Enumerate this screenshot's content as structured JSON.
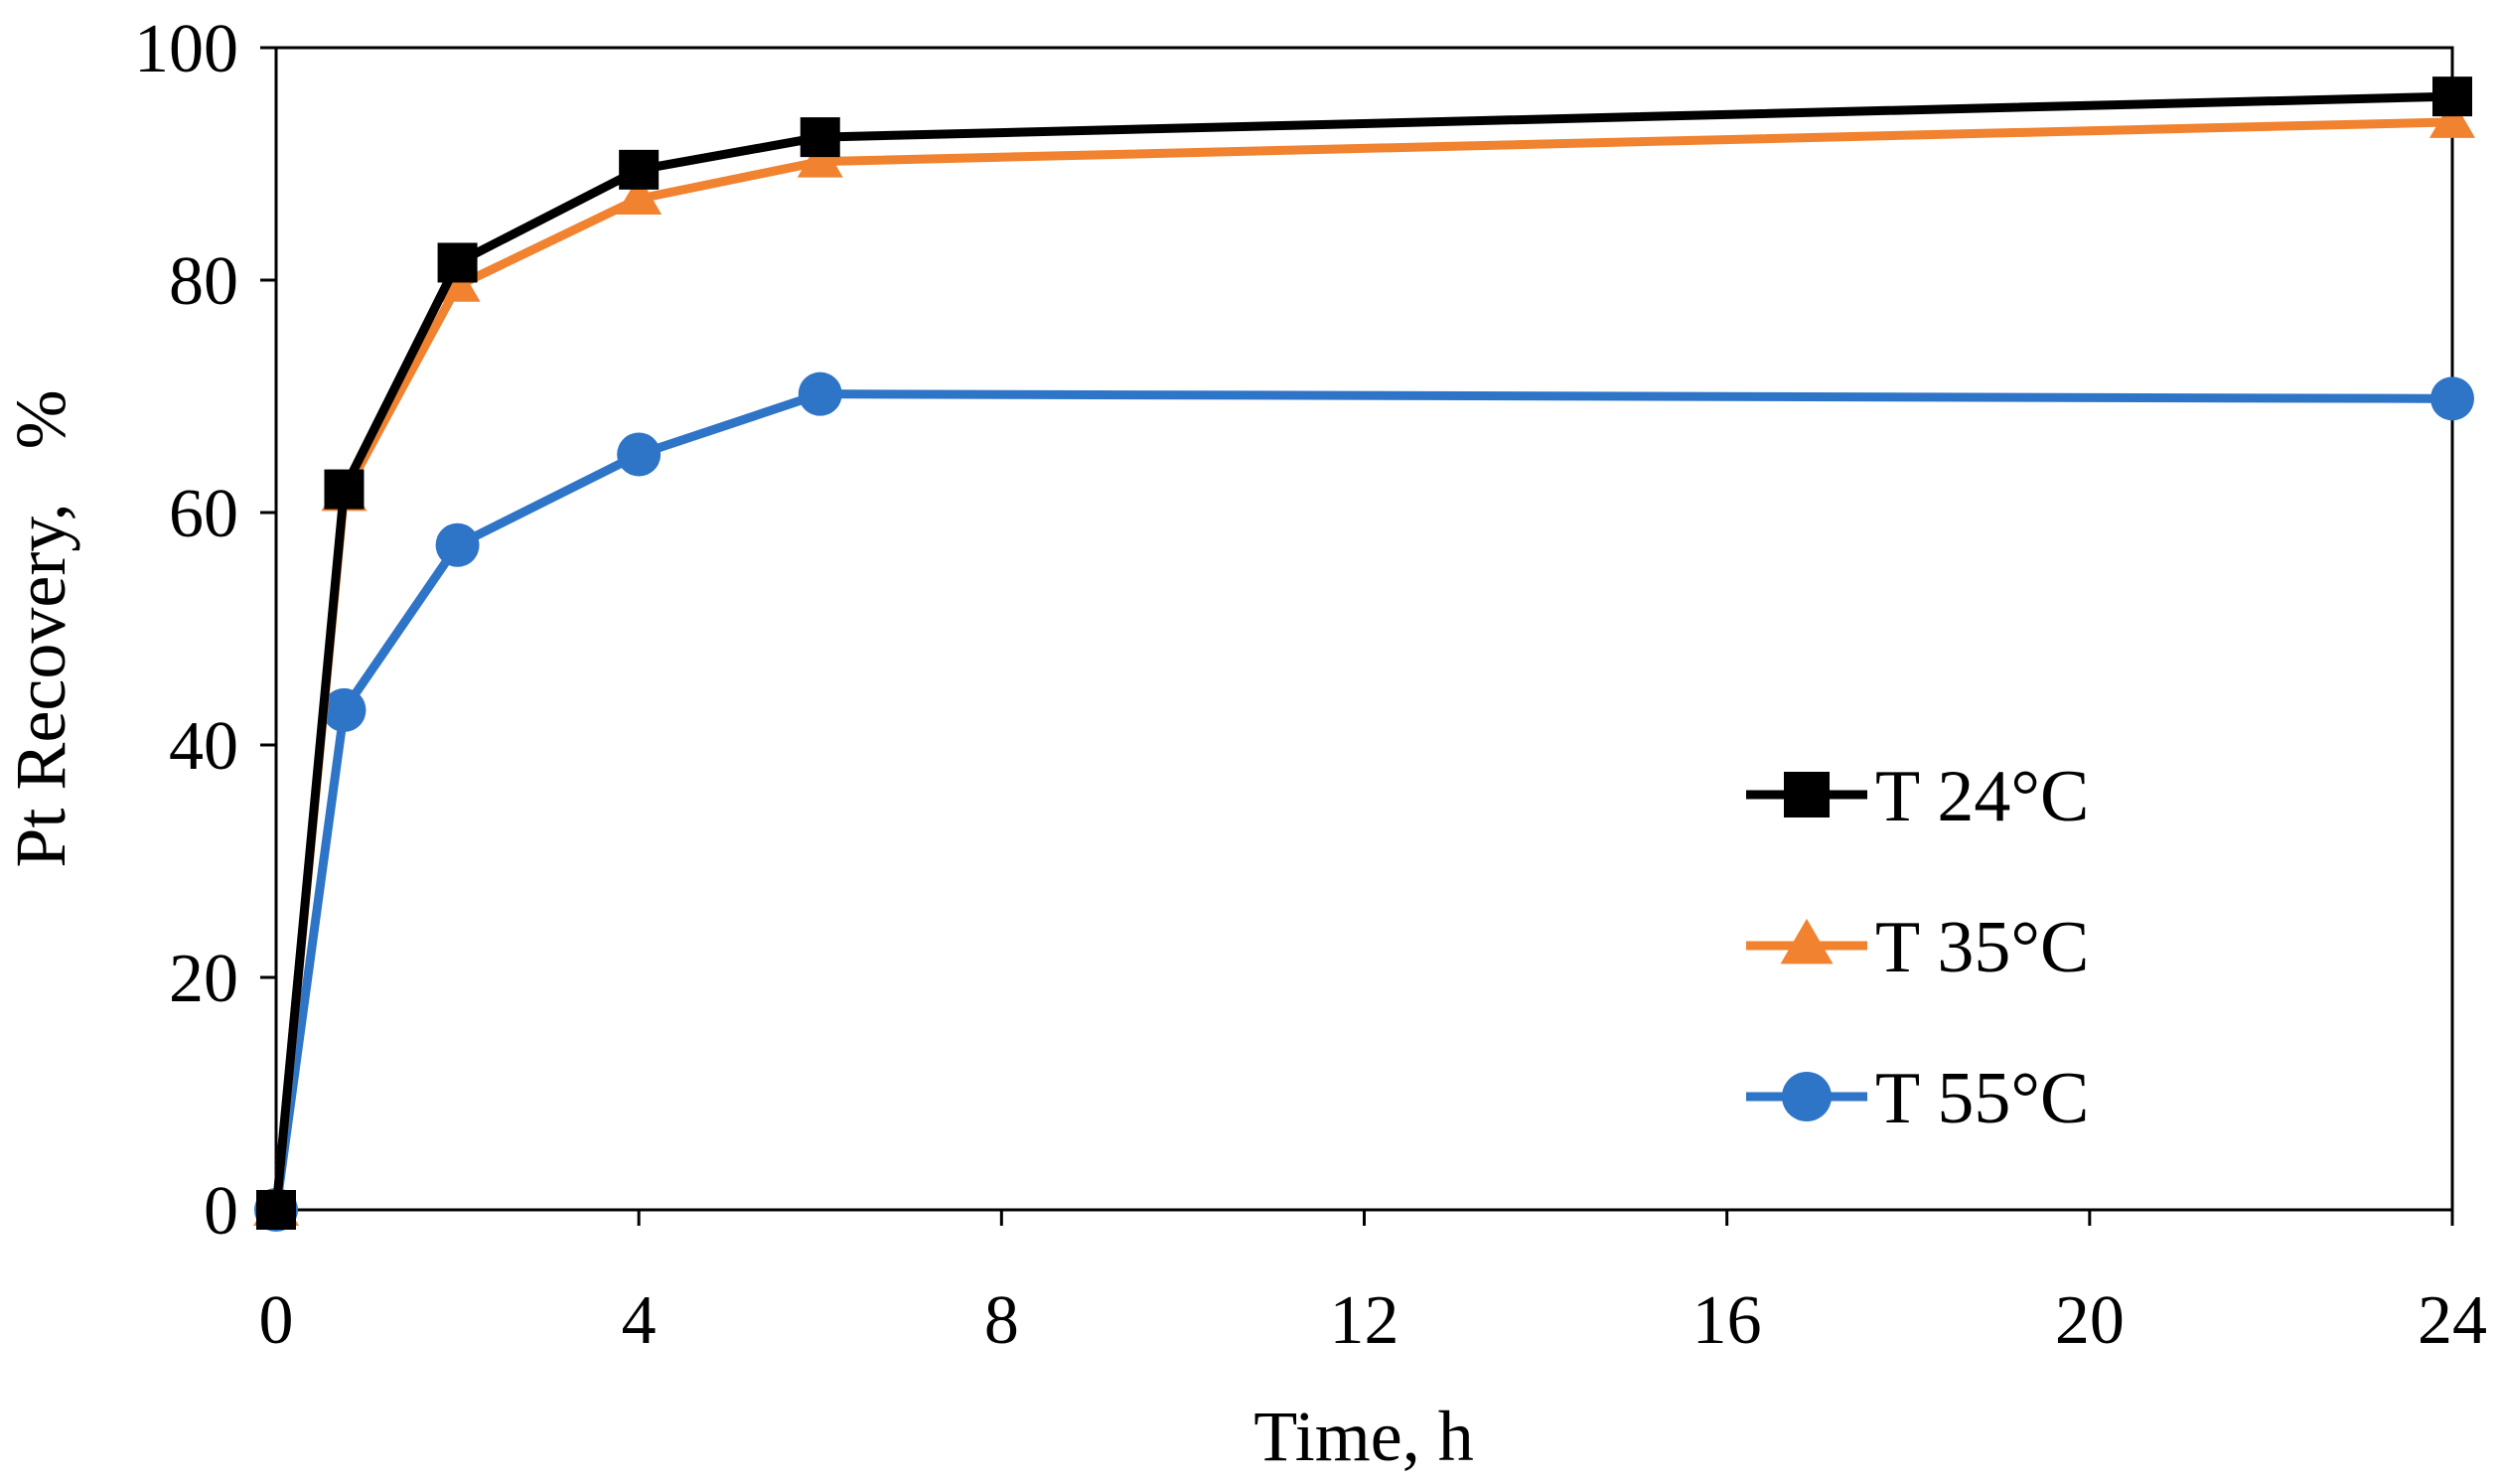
{
  "chart_data": {
    "type": "line",
    "title": "",
    "xlabel": "Time, h",
    "ylabel": "Pt Recovery,   %",
    "xlim": [
      0,
      24
    ],
    "ylim": [
      0,
      100
    ],
    "xticks": [
      0,
      4,
      8,
      12,
      16,
      20,
      24
    ],
    "yticks": [
      0,
      20,
      40,
      60,
      80,
      100
    ],
    "grid": false,
    "legend_position": "right",
    "x": [
      0,
      0.75,
      2,
      4,
      6,
      24
    ],
    "series": [
      {
        "name": "T 24°C",
        "marker": "square",
        "color": "#000000",
        "values": [
          0,
          62,
          81.5,
          89.5,
          92.3,
          95.8
        ]
      },
      {
        "name": "T 35°C",
        "marker": "triangle",
        "color": "#F08230",
        "values": [
          0,
          61.5,
          79.5,
          87,
          90.2,
          93.6
        ]
      },
      {
        "name": "T 55°C",
        "marker": "circle",
        "color": "#2E75C8",
        "values": [
          0,
          43,
          57.2,
          65,
          70.2,
          69.8
        ]
      }
    ]
  }
}
